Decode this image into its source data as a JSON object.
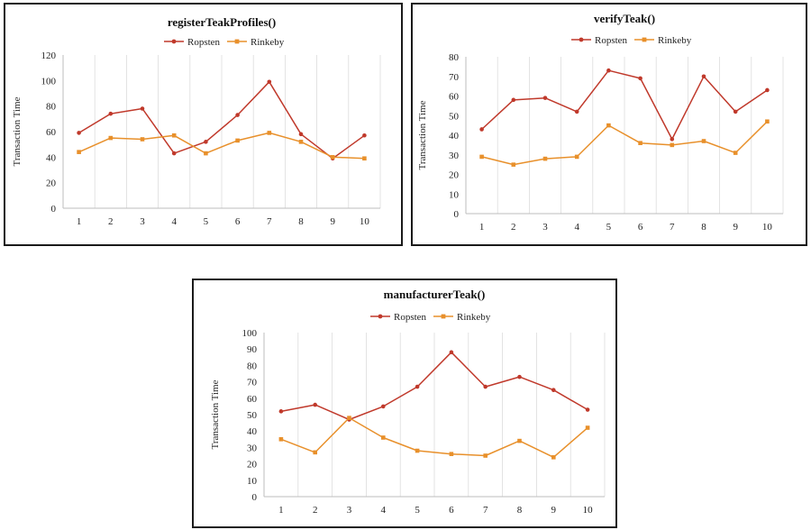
{
  "colors": {
    "ropsten": "#c0392b",
    "rinkeby": "#e8902b"
  },
  "chart_data": [
    {
      "type": "line",
      "title": "registerTeakProfiles()",
      "xlabel": "",
      "ylabel": "Transaction Time",
      "categories": [
        "1",
        "2",
        "3",
        "4",
        "5",
        "6",
        "7",
        "8",
        "9",
        "10"
      ],
      "ylim": [
        0,
        120
      ],
      "yticks": [
        0,
        20,
        40,
        60,
        80,
        100,
        120
      ],
      "series": [
        {
          "name": "Ropsten",
          "values": [
            59,
            74,
            78,
            43,
            52,
            73,
            99,
            58,
            39,
            57
          ]
        },
        {
          "name": "Rinkeby",
          "values": [
            44,
            55,
            54,
            57,
            43,
            53,
            59,
            52,
            40,
            39
          ]
        }
      ]
    },
    {
      "type": "line",
      "title": "verifyTeak()",
      "xlabel": "",
      "ylabel": "Transaction Time",
      "categories": [
        "1",
        "2",
        "3",
        "4",
        "5",
        "6",
        "7",
        "8",
        "9",
        "10"
      ],
      "ylim": [
        0,
        80
      ],
      "yticks": [
        0,
        10,
        20,
        30,
        40,
        50,
        60,
        70,
        80
      ],
      "series": [
        {
          "name": "Ropsten",
          "values": [
            43,
            58,
            59,
            52,
            73,
            69,
            38,
            70,
            52,
            63
          ]
        },
        {
          "name": "Rinkeby",
          "values": [
            29,
            25,
            28,
            29,
            45,
            36,
            35,
            37,
            31,
            47
          ]
        }
      ]
    },
    {
      "type": "line",
      "title": "manufacturerTeak()",
      "xlabel": "",
      "ylabel": "Transaction Time",
      "categories": [
        "1",
        "2",
        "3",
        "4",
        "5",
        "6",
        "7",
        "8",
        "9",
        "10"
      ],
      "ylim": [
        0,
        100
      ],
      "yticks": [
        0,
        10,
        20,
        30,
        40,
        50,
        60,
        70,
        80,
        90,
        100
      ],
      "series": [
        {
          "name": "Ropsten",
          "values": [
            52,
            56,
            47,
            55,
            67,
            88,
            67,
            73,
            65,
            53
          ]
        },
        {
          "name": "Rinkeby",
          "values": [
            35,
            27,
            48,
            36,
            28,
            26,
            25,
            34,
            24,
            42
          ]
        }
      ]
    }
  ]
}
